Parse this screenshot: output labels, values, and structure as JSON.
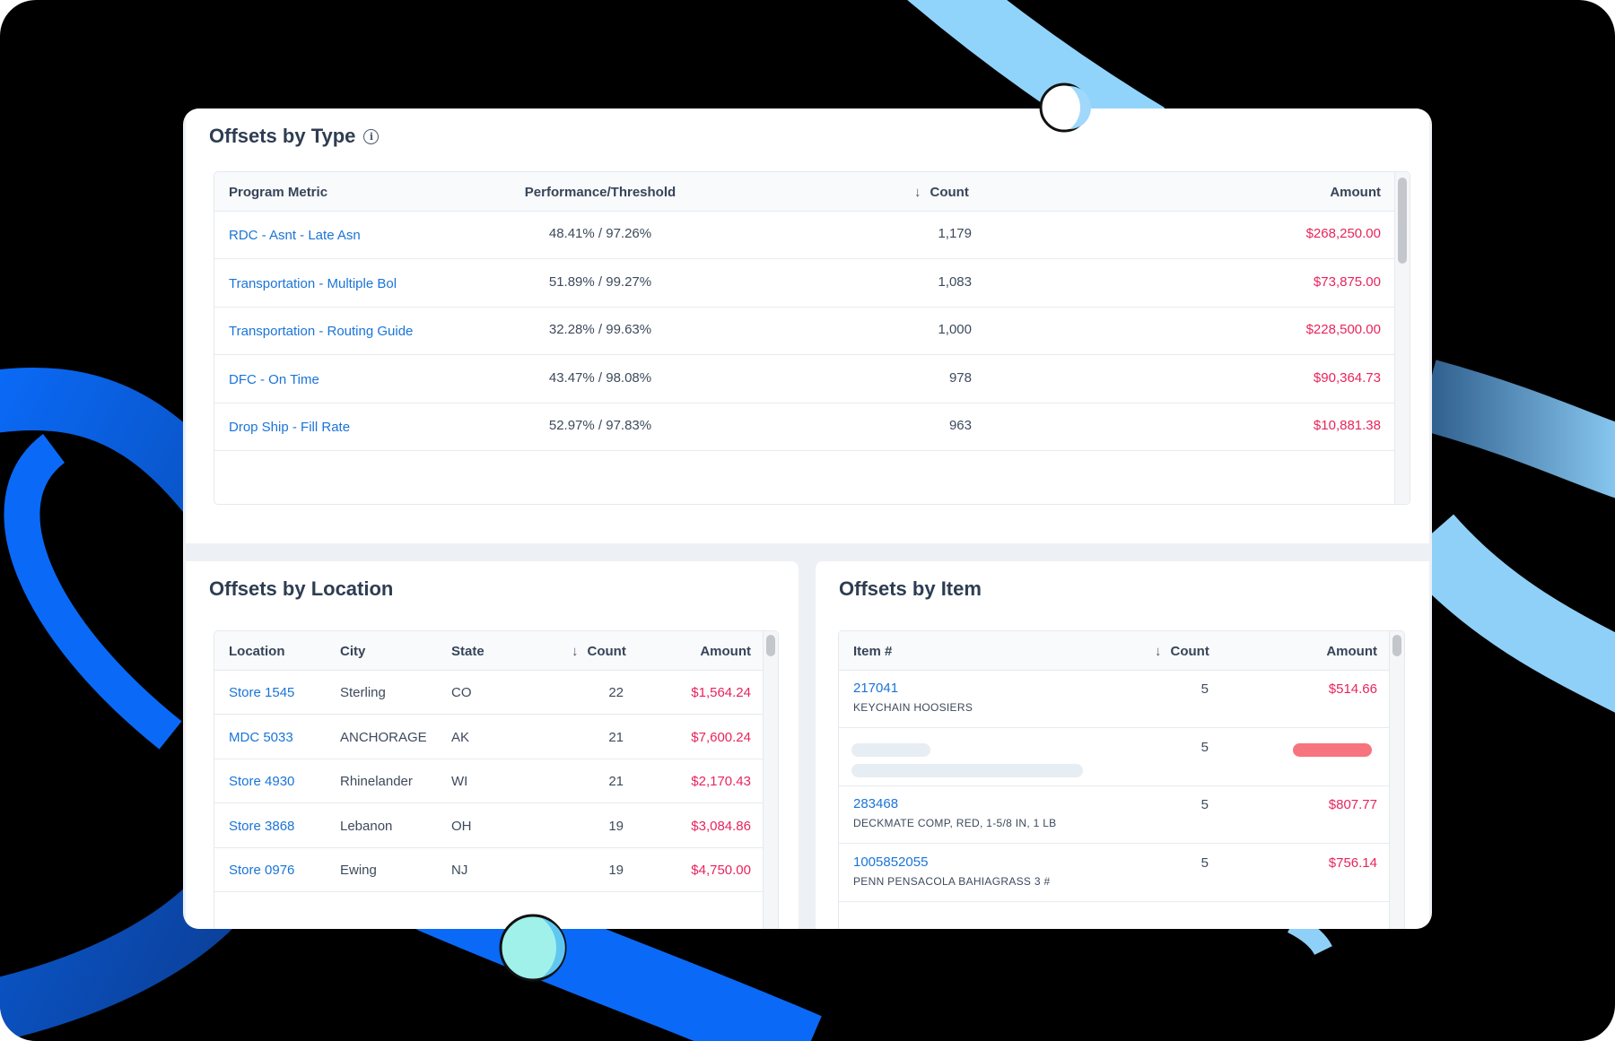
{
  "type_panel": {
    "title": "Offsets by Type",
    "columns": [
      "Program Metric",
      "Performance/Threshold",
      "Count",
      "Amount"
    ],
    "rows": [
      {
        "metric": "RDC - Asnt - Late Asn",
        "performance": "48.41% / 97.26%",
        "count": "1,179",
        "amount": "$268,250.00"
      },
      {
        "metric": "Transportation - Multiple Bol",
        "performance": "51.89% / 99.27%",
        "count": "1,083",
        "amount": "$73,875.00"
      },
      {
        "metric": "Transportation - Routing Guide",
        "performance": "32.28% / 99.63%",
        "count": "1,000",
        "amount": "$228,500.00"
      },
      {
        "metric": "DFC - On Time",
        "performance": "43.47% / 98.08%",
        "count": "978",
        "amount": "$90,364.73"
      },
      {
        "metric": "Drop Ship - Fill Rate",
        "performance": "52.97% / 97.83%",
        "count": "963",
        "amount": "$10,881.38"
      }
    ]
  },
  "location_panel": {
    "title": "Offsets by Location",
    "columns": [
      "Location",
      "City",
      "State",
      "Count",
      "Amount"
    ],
    "rows": [
      {
        "location": "Store 1545",
        "city": "Sterling",
        "state": "CO",
        "count": "22",
        "amount": "$1,564.24"
      },
      {
        "location": "MDC 5033",
        "city": "ANCHORAGE",
        "state": "AK",
        "count": "21",
        "amount": "$7,600.24"
      },
      {
        "location": "Store 4930",
        "city": "Rhinelander",
        "state": "WI",
        "count": "21",
        "amount": "$2,170.43"
      },
      {
        "location": "Store 3868",
        "city": "Lebanon",
        "state": "OH",
        "count": "19",
        "amount": "$3,084.86"
      },
      {
        "location": "Store 0976",
        "city": "Ewing",
        "state": "NJ",
        "count": "19",
        "amount": "$4,750.00"
      }
    ]
  },
  "item_panel": {
    "title": "Offsets by Item",
    "columns": [
      "Item #",
      "Count",
      "Amount"
    ],
    "rows": [
      {
        "item": "217041",
        "description": "KEYCHAIN HOOSIERS",
        "count": "5",
        "amount": "$514.66",
        "loading": false
      },
      {
        "item": "",
        "description": "",
        "count": "5",
        "amount": "",
        "loading": true
      },
      {
        "item": "283468",
        "description": "DECKMATE COMP, RED, 1-5/8 IN, 1 LB",
        "count": "5",
        "amount": "$807.77",
        "loading": false
      },
      {
        "item": "1005852055",
        "description": "PENN PENSACOLA BAHIAGRASS 3 #",
        "count": "5",
        "amount": "$756.14",
        "loading": false
      }
    ]
  },
  "colors": {
    "link": "#1a74d8",
    "amount": "#e8245c",
    "skeleton": "#e6edf3",
    "skeleton_amount": "#f7737e"
  }
}
